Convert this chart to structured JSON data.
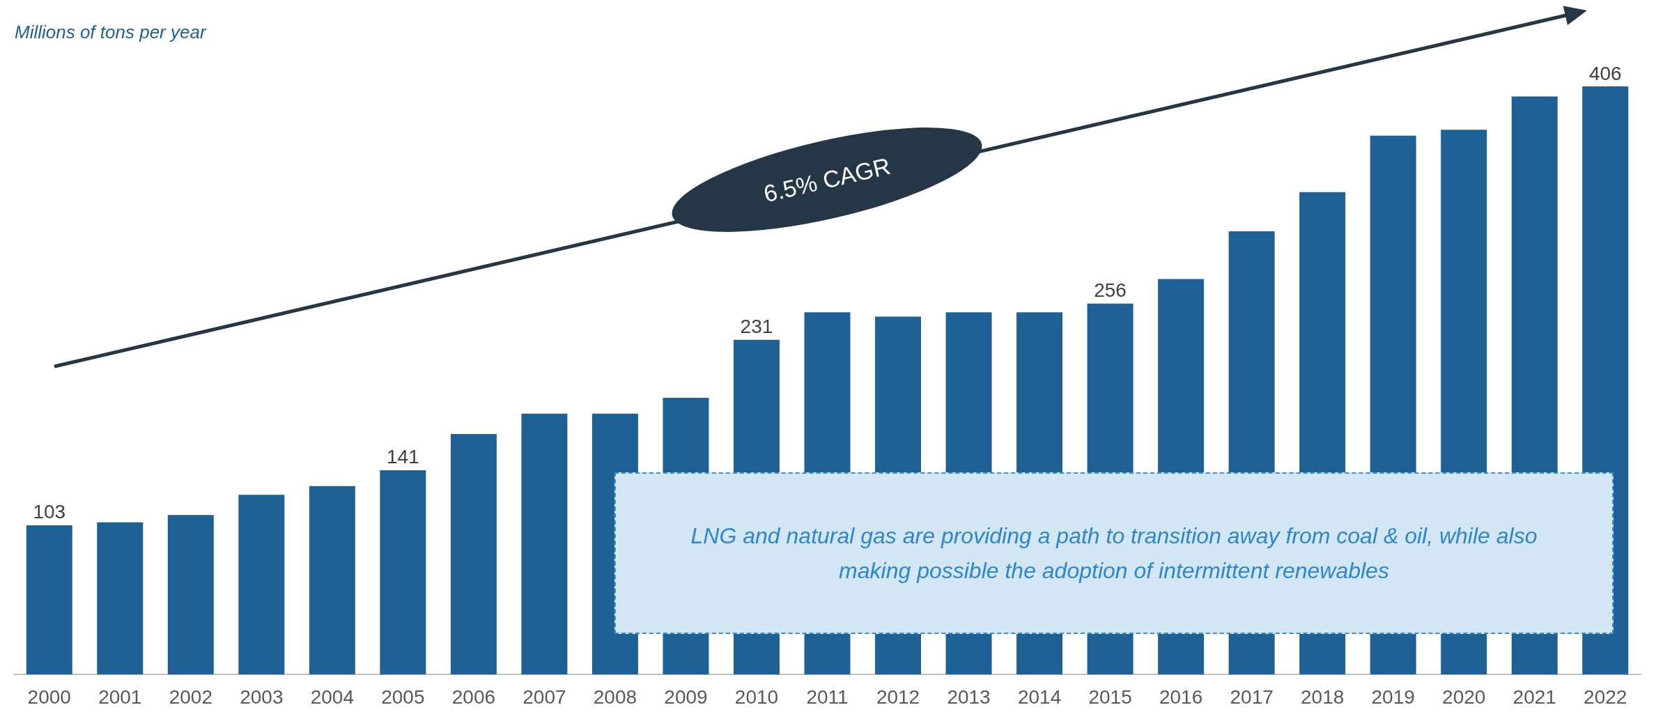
{
  "chart_data": {
    "type": "bar",
    "ylabel": "Millions of tons per year",
    "categories": [
      "2000",
      "2001",
      "2002",
      "2003",
      "2004",
      "2005",
      "2006",
      "2007",
      "2008",
      "2009",
      "2010",
      "2011",
      "2012",
      "2013",
      "2014",
      "2015",
      "2016",
      "2017",
      "2018",
      "2019",
      "2020",
      "2021",
      "2022"
    ],
    "values": [
      103,
      105,
      110,
      124,
      130,
      141,
      166,
      180,
      180,
      191,
      231,
      250,
      247,
      250,
      250,
      256,
      273,
      306,
      333,
      372,
      376,
      399,
      406
    ],
    "value_labels": [
      "103",
      null,
      null,
      null,
      null,
      "141",
      null,
      null,
      null,
      null,
      "231",
      null,
      null,
      null,
      null,
      "256",
      null,
      null,
      null,
      null,
      null,
      null,
      "406"
    ],
    "color": "#1f6194",
    "annotations": [
      "6.5% CAGR",
      "LNG and natural gas are providing a path to transition away from coal & oil, while also making possible the adoption of intermittent renewables"
    ]
  }
}
